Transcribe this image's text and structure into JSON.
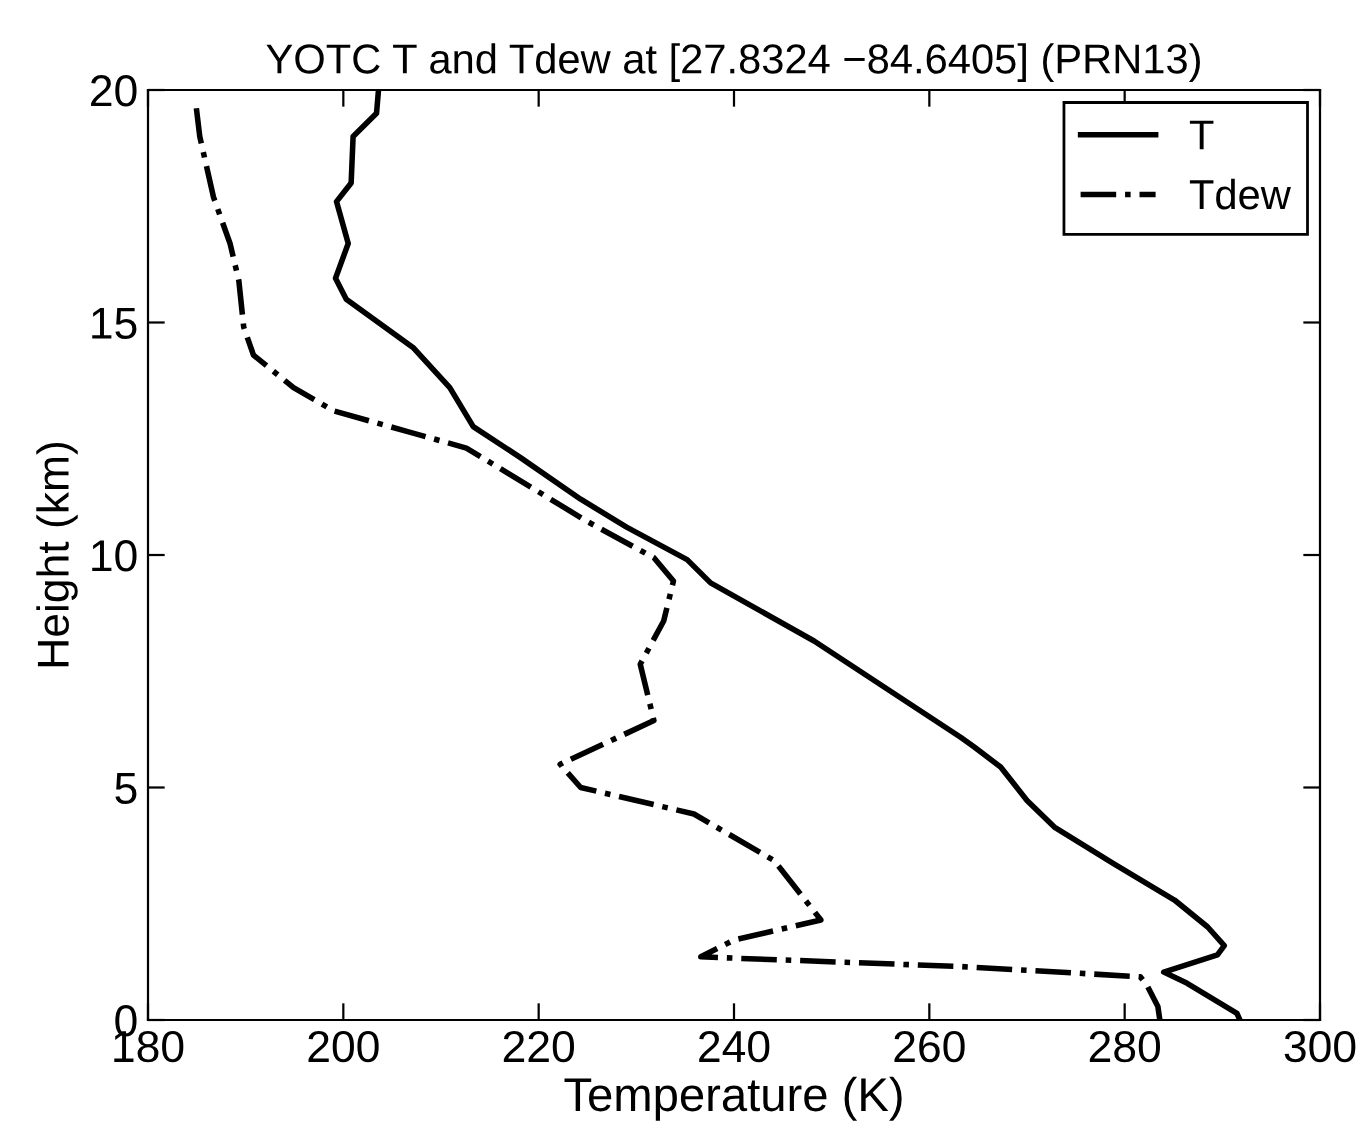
{
  "chart_data": {
    "type": "line",
    "title": "YOTC T and Tdew at [27.8324 −84.6405] (PRN13)",
    "xlabel": "Temperature (K)",
    "ylabel": "Height (km)",
    "xlim": [
      180,
      300
    ],
    "xticks": [
      180,
      200,
      220,
      240,
      260,
      280,
      300
    ],
    "ylim": [
      0,
      20
    ],
    "yticks": [
      0,
      5,
      10,
      15,
      20
    ],
    "grid": false,
    "legend": "top right",
    "marker": "none",
    "series": [
      {
        "name": "T",
        "color": "#000000",
        "line_style": "solid",
        "x": [
          291.8,
          291.5,
          286.4,
          284.0,
          289.5,
          290.2,
          288.5,
          285.1,
          278.9,
          272.8,
          270.0,
          267.3,
          264.6,
          263.2,
          248.2,
          237.6,
          235.2,
          229.0,
          224.3,
          218.1,
          213.3,
          210.9,
          207.2,
          200.3,
          199.2,
          200.5,
          199.3,
          200.8,
          201.0,
          203.4,
          203.6
        ],
        "values": [
          0,
          0.14,
          0.79,
          1.03,
          1.4,
          1.6,
          2.0,
          2.58,
          3.36,
          4.15,
          4.72,
          5.44,
          5.87,
          6.08,
          8.15,
          9.4,
          9.9,
          10.6,
          11.2,
          12.1,
          12.76,
          13.6,
          14.45,
          15.5,
          15.95,
          16.7,
          17.6,
          18.0,
          19.0,
          19.5,
          20
        ]
      },
      {
        "name": "Tdew",
        "color": "#000000",
        "line_style": "dashdot",
        "x": [
          283.6,
          283.4,
          282.3,
          281.6,
          263.2,
          240.0,
          236.6,
          240.0,
          248.9,
          244.1,
          235.9,
          224.3,
          222.2,
          231.8,
          230.4,
          232.8,
          233.8,
          231.8,
          224.9,
          218.1,
          212.6,
          206.5,
          199.0,
          194.9,
          190.8,
          189.8,
          189.3,
          188.4,
          186.7,
          185.3,
          184.9
        ],
        "values": [
          0,
          0.29,
          0.74,
          0.93,
          1.15,
          1.33,
          1.36,
          1.72,
          2.15,
          3.43,
          4.43,
          5.0,
          5.5,
          6.44,
          7.65,
          8.58,
          9.44,
          9.94,
          10.73,
          11.6,
          12.3,
          12.66,
          13.1,
          13.6,
          14.3,
          14.9,
          15.9,
          16.7,
          17.7,
          19.0,
          19.7
        ]
      }
    ]
  }
}
